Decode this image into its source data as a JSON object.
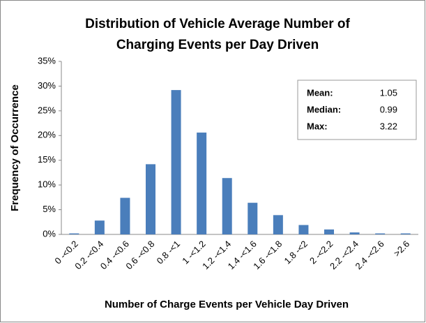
{
  "chart_data": {
    "type": "bar",
    "title": [
      "Distribution of Vehicle Average Number of",
      "Charging Events per Day Driven"
    ],
    "x_label": "Number of Charge Events per Vehicle Day Driven",
    "y_label": "Frequency of Occurrence",
    "categories": [
      "0 -<0.2",
      "0.2 -<0.4",
      "0.4 -<0.6",
      "0.6 -<0.8",
      "0.8 -<1",
      "1 -<1.2",
      "1.2 -<1.4",
      "1.4 -<1.6",
      "1.6 -<1.8",
      "1.8 -<2",
      "2 -<2.2",
      "2.2 -<2.4",
      "2.4 -<2.6",
      ">2.6"
    ],
    "values": [
      0.2,
      2.8,
      7.4,
      14.2,
      29.2,
      20.6,
      11.4,
      6.4,
      3.9,
      1.9,
      1.0,
      0.4,
      0.2,
      0.2
    ],
    "color": "#4a7ebb",
    "ylim": [
      0,
      35
    ],
    "yticks": [
      {
        "value": 0,
        "label": "0%"
      },
      {
        "value": 5,
        "label": "5%"
      },
      {
        "value": 10,
        "label": "10%"
      },
      {
        "value": 15,
        "label": "15%"
      },
      {
        "value": 20,
        "label": "20%"
      },
      {
        "value": 25,
        "label": "25%"
      },
      {
        "value": 30,
        "label": "30%"
      },
      {
        "value": 35,
        "label": "35%"
      }
    ],
    "grid": false,
    "stats": [
      {
        "label": "Mean:",
        "value": 1.05
      },
      {
        "label": "Median:",
        "value": 0.99
      },
      {
        "label": "Max:",
        "value": 3.22
      }
    ]
  }
}
